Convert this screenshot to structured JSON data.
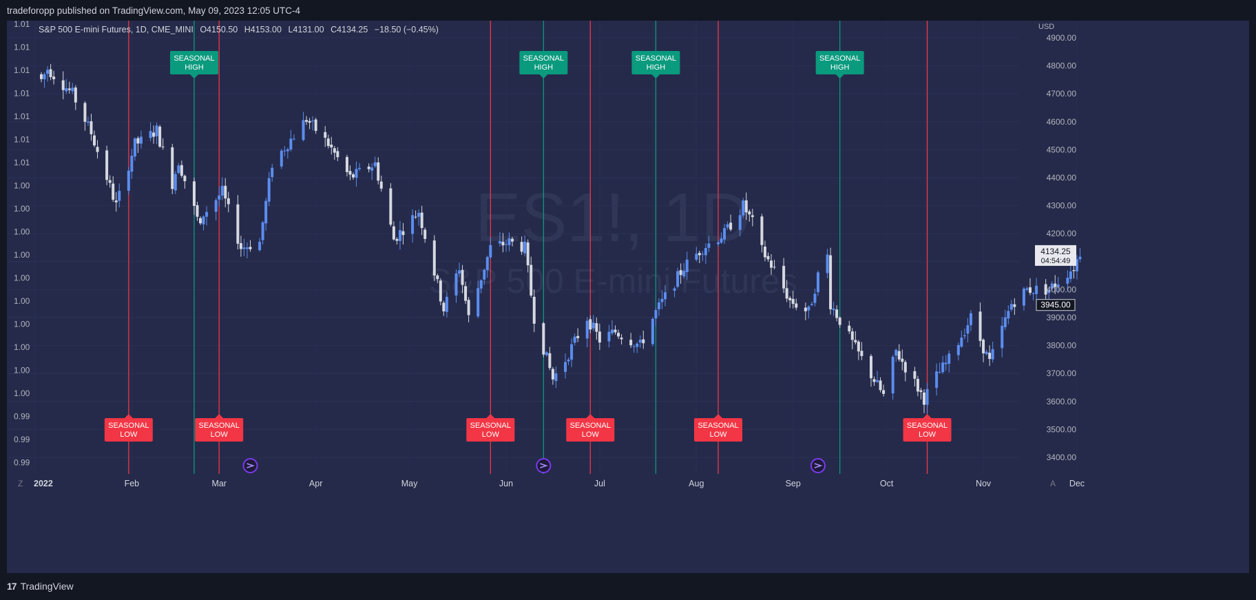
{
  "header": {
    "published_text": "tradeforopp published on TradingView.com, May 09, 2023 12:05 UTC-4"
  },
  "footer": {
    "brand": "TradingView",
    "logo_glyph": "17"
  },
  "chart_data": {
    "type": "candlestick",
    "symbol_line": "S&P 500 E-mini Futures, 1D, CME_MINI",
    "ohlc": {
      "open": "O4150.50",
      "high": "H4153.00",
      "low": "L4131.00",
      "close": "C4134.25",
      "change": "−18.50 (−0.45%)"
    },
    "watermark": {
      "ticker": "ES1!, 1D",
      "name": "S&P 500 E-mini Futures"
    },
    "currency": "USD",
    "y_right": {
      "min": 3400,
      "max": 4900,
      "ticks": [
        "4900.00",
        "4800.00",
        "4700.00",
        "4600.00",
        "4500.00",
        "4400.00",
        "4300.00",
        "4200.00",
        "4100.00",
        "4000.00",
        "3900.00",
        "3800.00",
        "3700.00",
        "3600.00",
        "3500.00",
        "3400.00"
      ]
    },
    "y_left_ticks": [
      "1.01",
      "1.01",
      "1.01",
      "1.01",
      "1.01",
      "1.01",
      "1.01",
      "1.00",
      "1.00",
      "1.00",
      "1.00",
      "1.00",
      "1.00",
      "1.00",
      "1.00",
      "1.00",
      "1.00",
      "0.99",
      "0.99",
      "0.99"
    ],
    "x_ticks": [
      "2022",
      "Feb",
      "Mar",
      "Apr",
      "May",
      "Jun",
      "Jul",
      "Aug",
      "Sep",
      "Oct",
      "Nov",
      "Dec"
    ],
    "axis_corner_left": "Z",
    "axis_corner_right": "A",
    "last_price": {
      "value": 4134.25,
      "label": "4134.25",
      "countdown": "04:54:49"
    },
    "crosshair_price": {
      "value": 3945,
      "label": "3945.00"
    },
    "seasonal_high_label": [
      "SEASONAL",
      "HIGH"
    ],
    "seasonal_low_label": [
      "SEASONAL",
      "LOW"
    ],
    "seasonal_high_dates": [
      "2022-02-21",
      "2022-06-13",
      "2022-07-19",
      "2022-09-16"
    ],
    "seasonal_low_dates": [
      "2022-01-31",
      "2022-03-01",
      "2022-05-27",
      "2022-06-28",
      "2022-08-08",
      "2022-10-14"
    ],
    "event_markers": [
      "2022-03-11",
      "2022-06-13",
      "2022-09-09"
    ],
    "colors": {
      "background": "#252a4a",
      "up": "#5b8def",
      "down": "#d6d9e0",
      "seasonal_high": "#0a9a7e",
      "seasonal_low": "#f23645",
      "marker": "#7c3aed"
    },
    "anchors": [
      [
        "2022-01-03",
        4750
      ],
      [
        "2022-01-05",
        4790
      ],
      [
        "2022-01-13",
        4700
      ],
      [
        "2022-01-19",
        4560
      ],
      [
        "2022-01-24",
        4400
      ],
      [
        "2022-01-27",
        4300
      ],
      [
        "2022-02-02",
        4520
      ],
      [
        "2022-02-04",
        4530
      ],
      [
        "2022-02-09",
        4570
      ],
      [
        "2022-02-14",
        4380
      ],
      [
        "2022-02-16",
        4460
      ],
      [
        "2022-02-23",
        4220
      ],
      [
        "2022-02-24",
        4270
      ],
      [
        "2022-03-02",
        4350
      ],
      [
        "2022-03-08",
        4150
      ],
      [
        "2022-03-14",
        4170
      ],
      [
        "2022-03-18",
        4450
      ],
      [
        "2022-03-29",
        4610
      ],
      [
        "2022-04-05",
        4520
      ],
      [
        "2022-04-12",
        4400
      ],
      [
        "2022-04-20",
        4450
      ],
      [
        "2022-04-26",
        4180
      ],
      [
        "2022-05-04",
        4280
      ],
      [
        "2022-05-12",
        3930
      ],
      [
        "2022-05-17",
        4080
      ],
      [
        "2022-05-20",
        3900
      ],
      [
        "2022-05-27",
        4150
      ],
      [
        "2022-06-02",
        4170
      ],
      [
        "2022-06-07",
        4150
      ],
      [
        "2022-06-10",
        3900
      ],
      [
        "2022-06-16",
        3680
      ],
      [
        "2022-06-20",
        3750
      ],
      [
        "2022-06-27",
        3900
      ],
      [
        "2022-07-01",
        3820
      ],
      [
        "2022-07-06",
        3850
      ],
      [
        "2022-07-14",
        3800
      ],
      [
        "2022-07-19",
        3920
      ],
      [
        "2022-07-28",
        4080
      ],
      [
        "2022-08-03",
        4150
      ],
      [
        "2022-08-10",
        4200
      ],
      [
        "2022-08-16",
        4300
      ],
      [
        "2022-08-19",
        4240
      ],
      [
        "2022-08-22",
        4140
      ],
      [
        "2022-08-26",
        4070
      ],
      [
        "2022-08-31",
        3960
      ],
      [
        "2022-09-06",
        3920
      ],
      [
        "2022-09-09",
        4050
      ],
      [
        "2022-09-12",
        4120
      ],
      [
        "2022-09-13",
        3950
      ],
      [
        "2022-09-21",
        3790
      ],
      [
        "2022-09-30",
        3620
      ],
      [
        "2022-10-04",
        3780
      ],
      [
        "2022-10-13",
        3610
      ],
      [
        "2022-10-17",
        3690
      ],
      [
        "2022-10-21",
        3750
      ],
      [
        "2022-10-28",
        3900
      ],
      [
        "2022-11-03",
        3740
      ],
      [
        "2022-11-10",
        3950
      ],
      [
        "2022-11-15",
        4000
      ],
      [
        "2022-11-22",
        4000
      ],
      [
        "2022-11-30",
        4080
      ],
      [
        "2022-12-02",
        4134
      ]
    ]
  }
}
